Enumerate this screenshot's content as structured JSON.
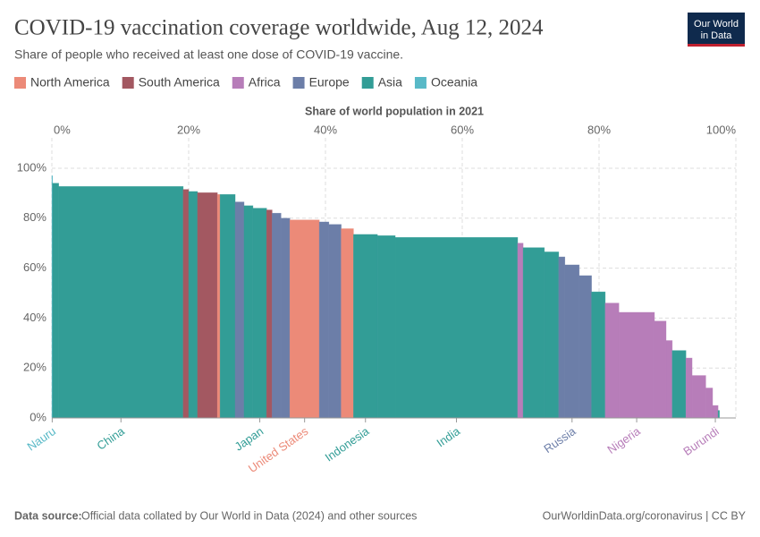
{
  "chart_data": {
    "type": "variable-width-bar",
    "title": "COVID-19 vaccination coverage worldwide, Aug 12, 2024",
    "subtitle": "Share of people who received at least one dose of COVID-19 vaccine.",
    "x_label": "Share of world population in 2021",
    "legend": [
      {
        "name": "North America",
        "color": "#ec8a78"
      },
      {
        "name": "South America",
        "color": "#a35861"
      },
      {
        "name": "Africa",
        "color": "#b77db9"
      },
      {
        "name": "Europe",
        "color": "#6c7ea8"
      },
      {
        "name": "Asia",
        "color": "#329d96"
      },
      {
        "name": "Oceania",
        "color": "#58b9c7"
      }
    ],
    "categories": [
      "Nauru",
      null,
      "China",
      null,
      null,
      null,
      null,
      null,
      null,
      null,
      "Japan",
      null,
      null,
      null,
      "United States",
      null,
      null,
      null,
      "Indonesia",
      null,
      "India",
      null,
      null,
      null,
      null,
      "Russia",
      null,
      null,
      null,
      "Nigeria",
      null,
      null,
      null,
      null,
      null,
      null,
      "Burundi",
      null
    ],
    "groups": [
      5,
      4,
      4,
      1,
      4,
      1,
      0,
      4,
      3,
      4,
      4,
      1,
      3,
      3,
      0,
      3,
      3,
      0,
      4,
      4,
      4,
      2,
      4,
      4,
      3,
      3,
      3,
      4,
      2,
      2,
      2,
      2,
      4,
      2,
      2,
      2,
      2,
      4
    ],
    "widths": [
      0.1,
      0.9,
      18.2,
      0.8,
      1.3,
      2.9,
      0.4,
      2.2,
      1.3,
      1.3,
      2.0,
      0.8,
      1.3,
      1.3,
      4.3,
      1.4,
      1.8,
      1.8,
      3.5,
      2.6,
      17.9,
      0.8,
      3.1,
      2.1,
      0.9,
      2.1,
      1.8,
      2.0,
      2.0,
      5.2,
      1.7,
      0.9,
      2.0,
      0.9,
      2.0,
      1.0,
      0.8,
      0.2
    ],
    "values": [
      97,
      94,
      92.7,
      91.5,
      90.7,
      90.2,
      89.5,
      89.5,
      86.5,
      85,
      84,
      83.3,
      82,
      80,
      79.3,
      78.5,
      77.5,
      75.8,
      73.5,
      73,
      72.3,
      70,
      68.2,
      66.5,
      64.5,
      61.3,
      57,
      50.5,
      46,
      42.3,
      38.8,
      31,
      27,
      24,
      17,
      12,
      5,
      3
    ],
    "xlim": [
      0,
      100
    ],
    "xticks": [
      {
        "value": 0,
        "label": "0%"
      },
      {
        "value": 20,
        "label": "20%"
      },
      {
        "value": 40,
        "label": "40%"
      },
      {
        "value": 60,
        "label": "60%"
      },
      {
        "value": 80,
        "label": "80%"
      },
      {
        "value": 100,
        "label": "100%"
      }
    ],
    "ylim": [
      0,
      100
    ],
    "yticks": [
      {
        "value": 0,
        "label": "0%"
      },
      {
        "value": 20,
        "label": "20%"
      },
      {
        "value": 40,
        "label": "40%"
      },
      {
        "value": 60,
        "label": "60%"
      },
      {
        "value": 80,
        "label": "80%"
      },
      {
        "value": 100,
        "label": "100%"
      }
    ],
    "grid": true,
    "source_label": "Data source:",
    "source": "Official data collated by Our World in Data (2024) and other sources",
    "credit": "OurWorldinData.org/coronavirus | CC BY",
    "logo": [
      "Our World",
      "in Data"
    ]
  }
}
